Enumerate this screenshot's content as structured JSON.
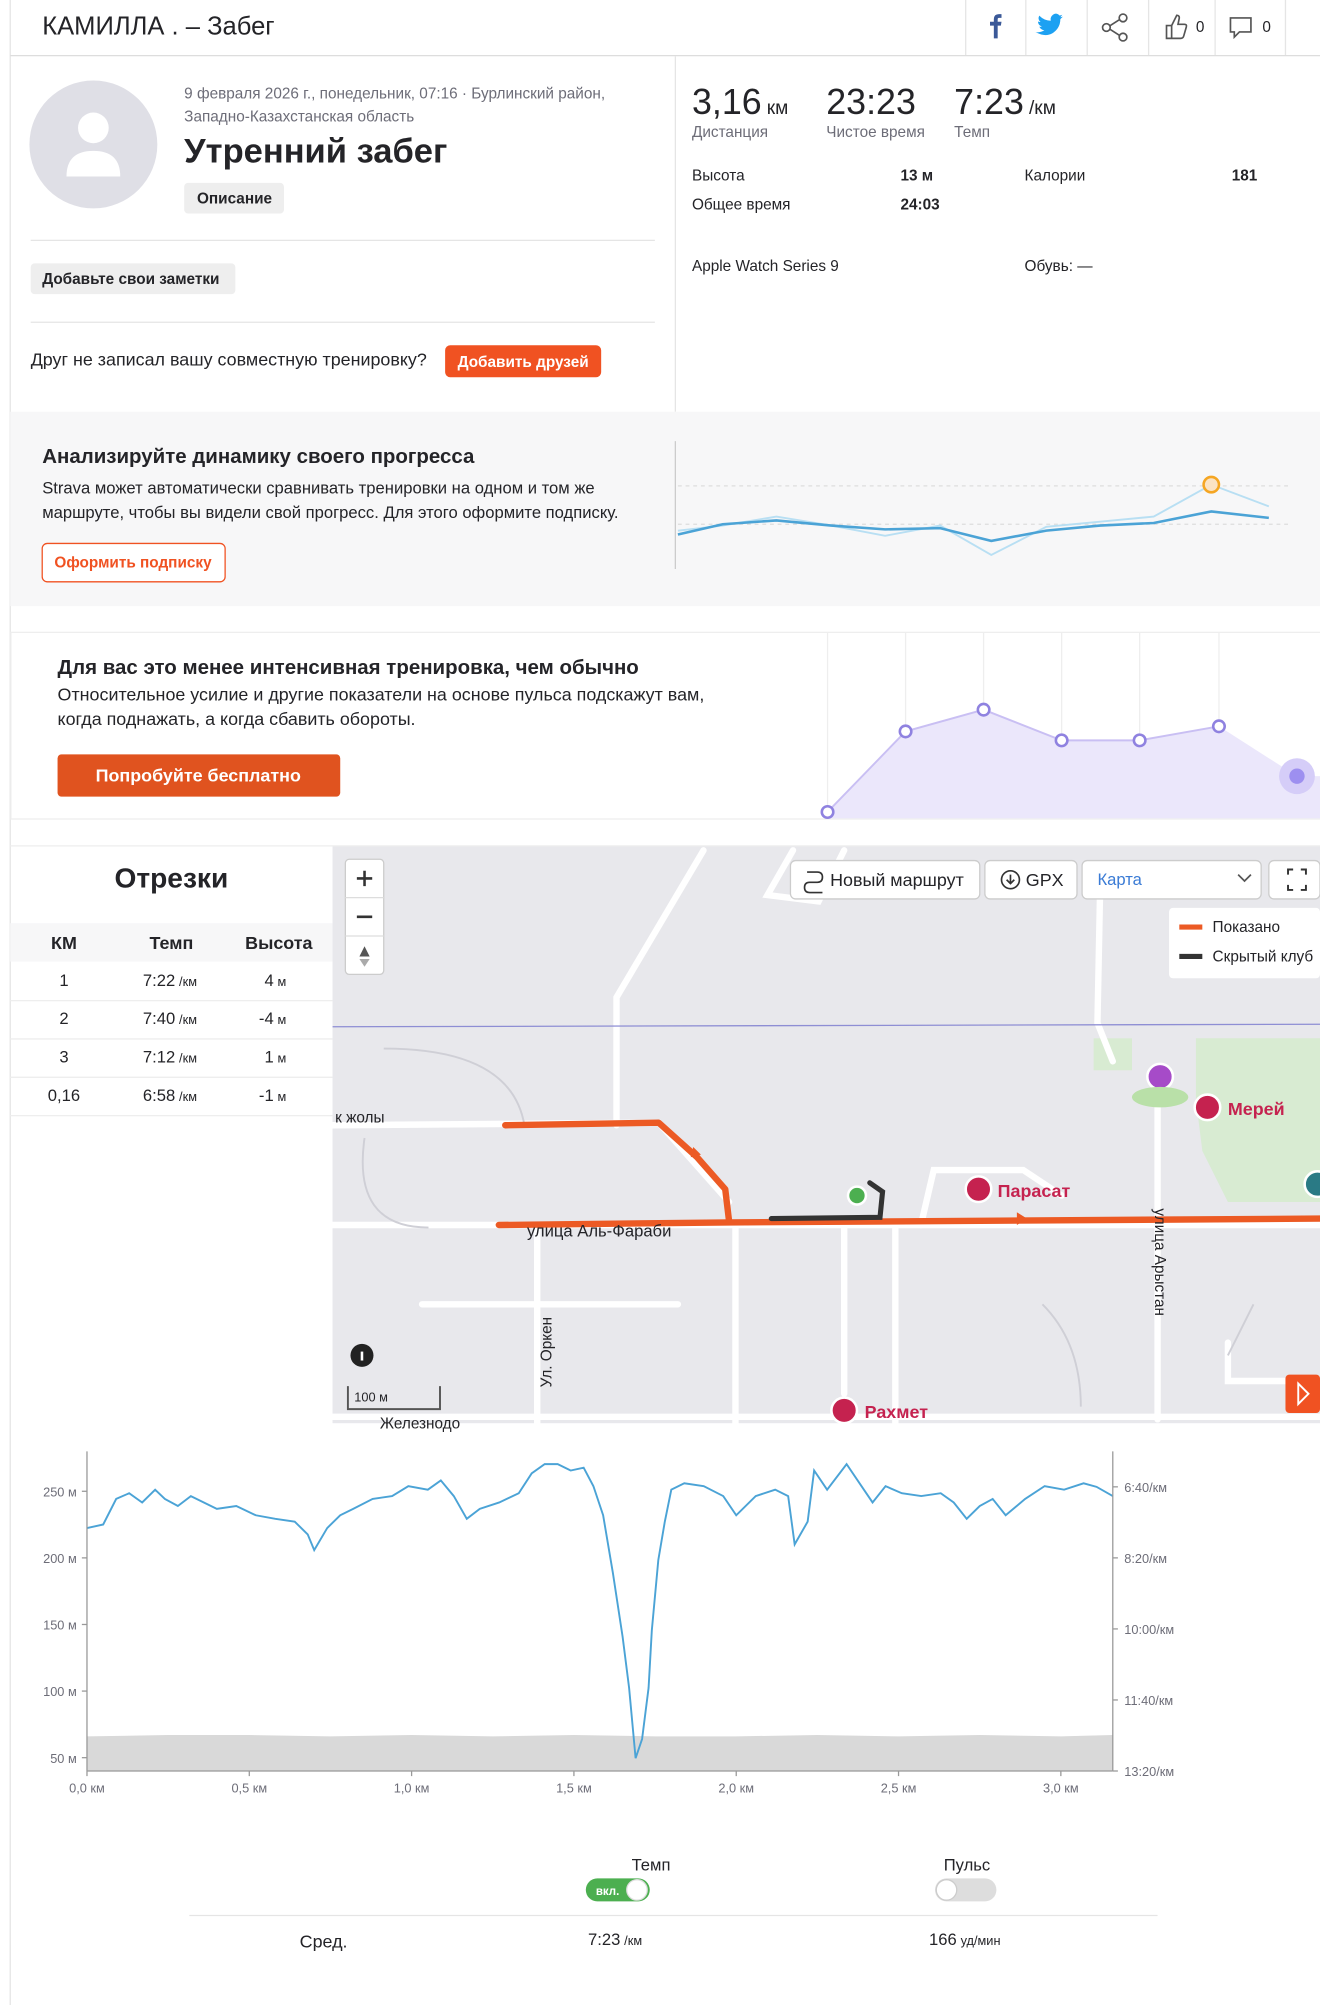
{
  "header": {
    "title": "КАМИЛЛА . – Забег",
    "kudos": "0",
    "comments": "0"
  },
  "activity": {
    "meta": [
      "9 февраля 2026 г., понедельник, 07:16 · Бурлинский район,",
      "Западно-Казахстанская область"
    ],
    "title": "Утренний забег",
    "description_button": "Описание",
    "notes_button": "Добавьте свои заметки",
    "friend_prompt": "Друг не записал вашу совместную тренировку?",
    "add_friends_button": "Добавить друзей"
  },
  "stats": {
    "primary": [
      {
        "value": "3,16",
        "unit": "км",
        "label": "Дистанция"
      },
      {
        "value": "23:23",
        "label": "Чистое время"
      },
      {
        "value": "7:23",
        "unit": "/км",
        "label": "Темп"
      }
    ],
    "secondary": [
      {
        "label": "Высота",
        "value": "13 м"
      },
      {
        "label": "Калории",
        "value": "181"
      },
      {
        "label": "Общее время",
        "value": "24:03"
      }
    ],
    "device": "Apple Watch Series 9",
    "shoes": "Обувь: —"
  },
  "promo_progress": {
    "title": "Анализируйте динамику своего прогресса",
    "text": [
      "Strava может автоматически сравнивать тренировки на одном и том же",
      "маршруте, чтобы вы видели свой прогресс. Для этого оформите подписку."
    ],
    "button": "Оформить подписку"
  },
  "promo_intensity": {
    "title": "Для вас это менее интенсивная тренировка, чем обычно",
    "text": [
      "Относительное усилие и другие показатели на основе пульса подскажут вам,",
      "когда поднажать, а когда сбавить обороты."
    ],
    "button": "Попробуйте бесплатно"
  },
  "splits": {
    "title": "Отрезки",
    "columns": [
      "КМ",
      "Темп",
      "Высота"
    ],
    "rows": [
      {
        "km": "1",
        "pace": "7:22",
        "pace_unit": "/км",
        "elev": "4",
        "elev_unit": "м"
      },
      {
        "km": "2",
        "pace": "7:40",
        "pace_unit": "/км",
        "elev": "-4",
        "elev_unit": "м"
      },
      {
        "km": "3",
        "pace": "7:12",
        "pace_unit": "/км",
        "elev": "1",
        "elev_unit": "м"
      },
      {
        "km": "0,16",
        "pace": "6:58",
        "pace_unit": "/км",
        "elev": "-1",
        "elev_unit": "м"
      }
    ]
  },
  "map": {
    "new_route": "Новый маршрут",
    "gpx": "GPX",
    "map_type": "Карта",
    "legend": [
      "Показано",
      "Скрытый клуб"
    ],
    "labels": {
      "street1": "к жолы",
      "street2": "улица Аль-Фараби",
      "street3": "Ул. Оркен",
      "street4": "улица Арыстан",
      "poi1": "Парасат",
      "poi2": "Мерей",
      "poi3": "Рахмет",
      "street5": "Железнодо"
    },
    "scale": "100 м"
  },
  "chart": {
    "type": "line",
    "xlim": [
      0,
      3.16
    ],
    "xticks": [
      {
        "value": 0,
        "label": "0,0 км"
      },
      {
        "value": 0.5,
        "label": "0,5 км"
      },
      {
        "value": 1,
        "label": "1,0 км"
      },
      {
        "value": 1.5,
        "label": "1,5 км"
      },
      {
        "value": 2,
        "label": "2,0 км"
      },
      {
        "value": 2.5,
        "label": "2,5 км"
      },
      {
        "value": 3,
        "label": "3,0 км"
      }
    ],
    "ylim": [
      40,
      280
    ],
    "yticks": [
      {
        "value": 50,
        "label": "50 м"
      },
      {
        "value": 100,
        "label": "100 м"
      },
      {
        "value": 150,
        "label": "150 м"
      },
      {
        "value": 200,
        "label": "200 м"
      },
      {
        "value": 250,
        "label": "250 м"
      }
    ],
    "y2lim": [
      800,
      350
    ],
    "y2ticks": [
      {
        "value": 400,
        "label": "6:40/км"
      },
      {
        "value": 500,
        "label": "8:20/км"
      },
      {
        "value": 600,
        "label": "10:00/км"
      },
      {
        "value": 700,
        "label": "11:40/км"
      },
      {
        "value": 800,
        "label": "13:20/км"
      }
    ],
    "pace": {
      "axis": "y2",
      "color": "#4ba3d6",
      "x": [
        0,
        0.05,
        0.09,
        0.13,
        0.17,
        0.21,
        0.24,
        0.28,
        0.32,
        0.36,
        0.4,
        0.46,
        0.52,
        0.58,
        0.64,
        0.68,
        0.7,
        0.74,
        0.78,
        0.82,
        0.88,
        0.94,
        0.99,
        1.05,
        1.09,
        1.13,
        1.17,
        1.21,
        1.27,
        1.33,
        1.37,
        1.41,
        1.45,
        1.49,
        1.53,
        1.56,
        1.59,
        1.62,
        1.65,
        1.67,
        1.69,
        1.71,
        1.73,
        1.74,
        1.76,
        1.78,
        1.8,
        1.84,
        1.9,
        1.96,
        2.0,
        2.06,
        2.12,
        2.16,
        2.18,
        2.22,
        2.24,
        2.28,
        2.34,
        2.38,
        2.42,
        2.46,
        2.51,
        2.57,
        2.63,
        2.67,
        2.71,
        2.75,
        2.79,
        2.83,
        2.89,
        2.95,
        3.01,
        3.07,
        3.11,
        3.16
      ],
      "values": [
        458,
        453,
        417,
        409,
        422,
        404,
        417,
        427,
        413,
        422,
        431,
        427,
        440,
        445,
        449,
        467,
        489,
        458,
        440,
        431,
        417,
        413,
        399,
        404,
        391,
        413,
        445,
        431,
        422,
        409,
        381,
        368,
        368,
        377,
        373,
        399,
        440,
        521,
        611,
        683,
        782,
        755,
        683,
        602,
        503,
        449,
        404,
        395,
        399,
        413,
        440,
        413,
        404,
        413,
        481,
        449,
        377,
        404,
        368,
        395,
        422,
        399,
        409,
        413,
        409,
        422,
        445,
        427,
        417,
        440,
        417,
        399,
        404,
        395,
        400,
        413
      ]
    },
    "elevation": {
      "color": "#d9d9d9",
      "x": [
        0,
        0.25,
        0.5,
        0.75,
        1,
        1.25,
        1.5,
        1.75,
        2,
        2.25,
        2.5,
        2.75,
        3,
        3.16
      ],
      "values": [
        66,
        67,
        67,
        66,
        67,
        66,
        67,
        66,
        66,
        67,
        66,
        67,
        66,
        67
      ]
    }
  },
  "footer": {
    "toggles": [
      {
        "label": "Темп",
        "state": "вкл."
      },
      {
        "label": "Пульс"
      }
    ],
    "avg_label": "Сред.",
    "avg_pace": "7:23",
    "avg_pace_unit": "/км",
    "avg_hr": "166",
    "avg_hr_unit": "уд/мин"
  }
}
